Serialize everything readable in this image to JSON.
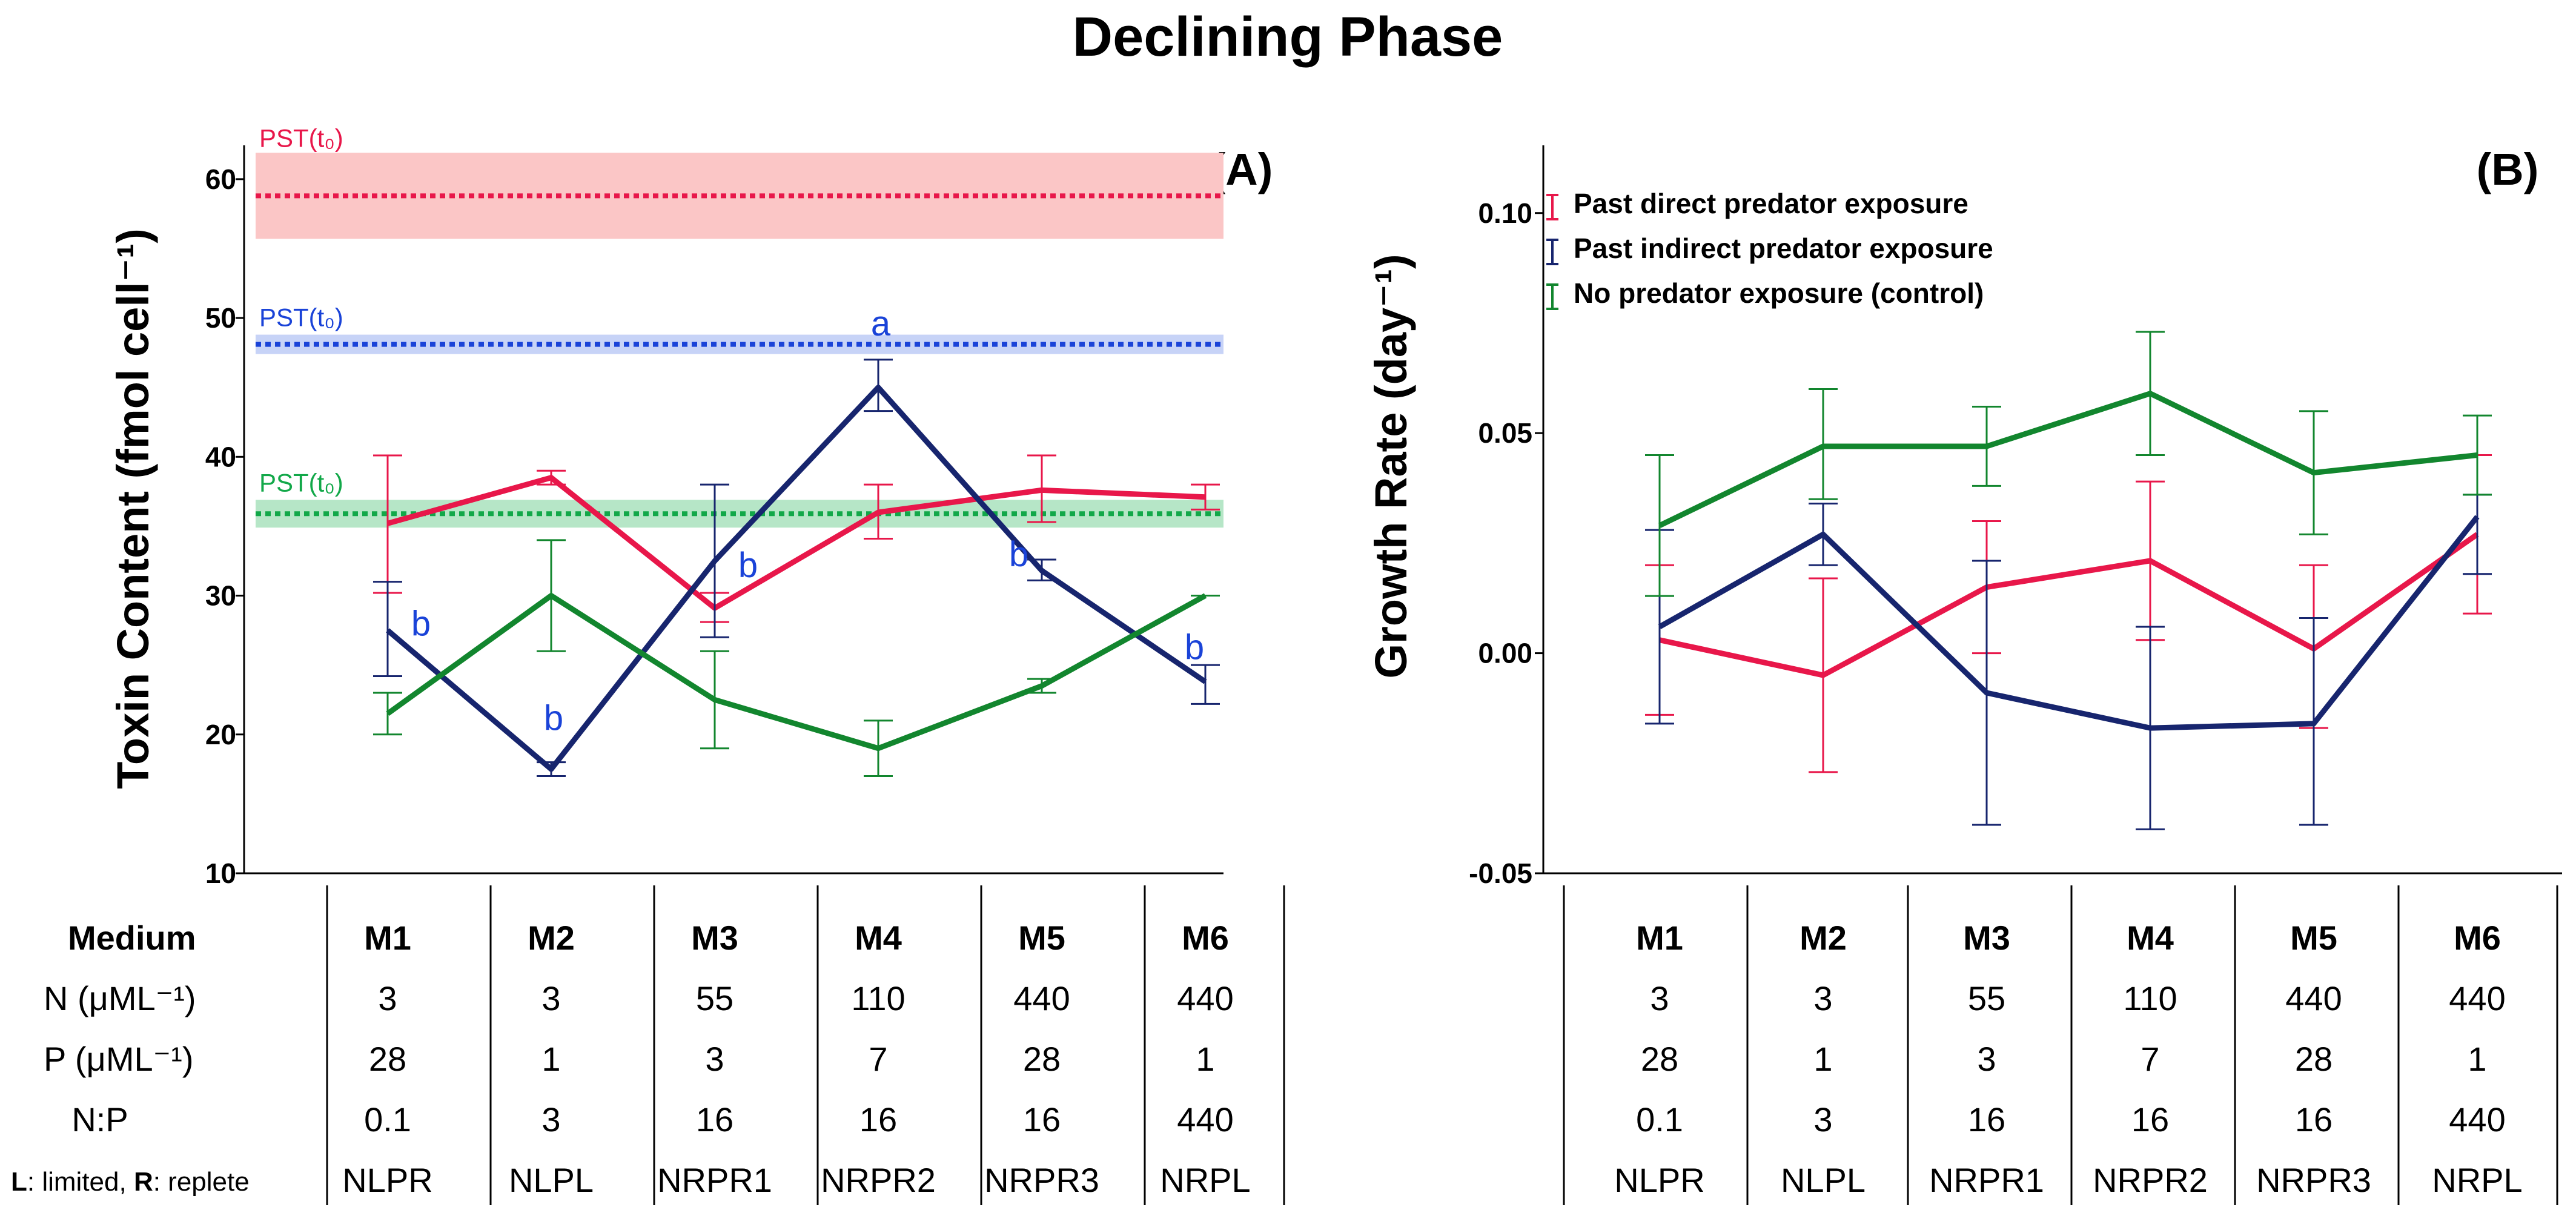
{
  "title": "Declining Phase",
  "colors": {
    "direct": "#e8174a",
    "indirect": "#17256e",
    "control": "#12862e",
    "pst_red": "#e8174a",
    "pst_blue": "#1a43d8",
    "pst_green": "#12a849",
    "sig": "#1a43d8"
  },
  "chart_data": [
    {
      "id": "A",
      "type": "line",
      "panel_label": "(A)",
      "ylabel": "Toxin Content (fmol cell⁻¹)",
      "ylim": [
        10,
        62
      ],
      "yticks": [
        10,
        20,
        30,
        40,
        50,
        60
      ],
      "categories": [
        "M1",
        "M2",
        "M3",
        "M4",
        "M5",
        "M6"
      ],
      "pst_label": "PST(t₀)",
      "pst_bands": [
        {
          "series": "direct",
          "mean": 58.8,
          "low": 55.7,
          "high": 61.9
        },
        {
          "series": "indirect",
          "mean": 48.1,
          "low": 47.4,
          "high": 48.8
        },
        {
          "series": "control",
          "mean": 35.9,
          "low": 34.9,
          "high": 36.9
        }
      ],
      "series": [
        {
          "name": "direct",
          "values": [
            35.2,
            38.5,
            29.1,
            36.0,
            37.6,
            37.1
          ],
          "err_low": [
            30.2,
            38.0,
            28.1,
            34.1,
            35.3,
            36.2
          ],
          "err_high": [
            40.1,
            39.0,
            30.2,
            38.0,
            40.1,
            38.0
          ]
        },
        {
          "name": "indirect",
          "values": [
            27.5,
            17.5,
            32.5,
            45.0,
            31.8,
            23.8
          ],
          "err_low": [
            24.2,
            17.0,
            27.0,
            43.3,
            31.1,
            22.2
          ],
          "err_high": [
            31.0,
            18.0,
            38.0,
            47.0,
            32.6,
            25.0
          ]
        },
        {
          "name": "control",
          "values": [
            21.5,
            30.0,
            22.5,
            19.0,
            23.5,
            30.0
          ],
          "err_low": [
            20.0,
            26.0,
            19.0,
            17.0,
            23.0,
            30.0
          ],
          "err_high": [
            23.0,
            34.0,
            26.0,
            21.0,
            24.0,
            30.0
          ]
        }
      ],
      "significance": [
        {
          "category": "M1",
          "label": "b",
          "y": 28.0
        },
        {
          "category": "M2",
          "label": "b",
          "y": 21.2
        },
        {
          "category": "M3",
          "label": "b",
          "y": 32.2
        },
        {
          "category": "M4",
          "label": "a",
          "y": 49.6
        },
        {
          "category": "M5",
          "label": "b",
          "y": 33.0
        },
        {
          "category": "M6",
          "label": "b",
          "y": 26.3
        }
      ]
    },
    {
      "id": "B",
      "type": "line",
      "panel_label": "(B)",
      "ylabel": "Growth Rate (day⁻¹)",
      "ylim": [
        -0.05,
        0.114
      ],
      "yticks": [
        "-0.05",
        "0.00",
        "0.05",
        "0.10"
      ],
      "categories": [
        "M1",
        "M2",
        "M3",
        "M4",
        "M5",
        "M6"
      ],
      "series": [
        {
          "name": "direct",
          "values": [
            0.003,
            -0.005,
            0.015,
            0.021,
            0.001,
            0.027
          ],
          "err_low": [
            -0.014,
            -0.027,
            0.0,
            0.003,
            -0.017,
            0.009
          ],
          "err_high": [
            0.02,
            0.017,
            0.03,
            0.039,
            0.02,
            0.045
          ]
        },
        {
          "name": "indirect",
          "values": [
            0.006,
            0.027,
            -0.009,
            -0.017,
            -0.016,
            0.031
          ],
          "err_low": [
            -0.016,
            0.02,
            -0.039,
            -0.04,
            -0.039,
            0.018
          ],
          "err_high": [
            0.028,
            0.034,
            0.021,
            0.006,
            0.008,
            0.036
          ]
        },
        {
          "name": "control",
          "values": [
            0.029,
            0.047,
            0.047,
            0.059,
            0.041,
            0.045
          ],
          "err_low": [
            0.013,
            0.035,
            0.038,
            0.045,
            0.027,
            0.036
          ],
          "err_high": [
            0.045,
            0.06,
            0.056,
            0.073,
            0.055,
            0.054
          ]
        }
      ],
      "legend": [
        {
          "series": "direct",
          "label": "Past direct predator exposure"
        },
        {
          "series": "indirect",
          "label": "Past indirect predator exposure"
        },
        {
          "series": "control",
          "label": "No predator exposure (control)"
        }
      ]
    }
  ],
  "table": {
    "row_labels": [
      "Medium",
      "N (μML⁻¹)",
      "P (μML⁻¹)",
      "N:P"
    ],
    "note_bold_1": "L",
    "note_text_1": ": limited, ",
    "note_bold_2": "R",
    "note_text_2": ": replete",
    "columns": [
      {
        "medium": "M1",
        "n": "3",
        "p": "28",
        "np": "0.1",
        "code": "NLPR"
      },
      {
        "medium": "M2",
        "n": "3",
        "p": "1",
        "np": "3",
        "code": "NLPL"
      },
      {
        "medium": "M3",
        "n": "55",
        "p": "3",
        "np": "16",
        "code": "NRPR1"
      },
      {
        "medium": "M4",
        "n": "110",
        "p": "7",
        "np": "16",
        "code": "NRPR2"
      },
      {
        "medium": "M5",
        "n": "440",
        "p": "28",
        "np": "16",
        "code": "NRPR3"
      },
      {
        "medium": "M6",
        "n": "440",
        "p": "1",
        "np": "440",
        "code": "NRPL"
      }
    ]
  }
}
